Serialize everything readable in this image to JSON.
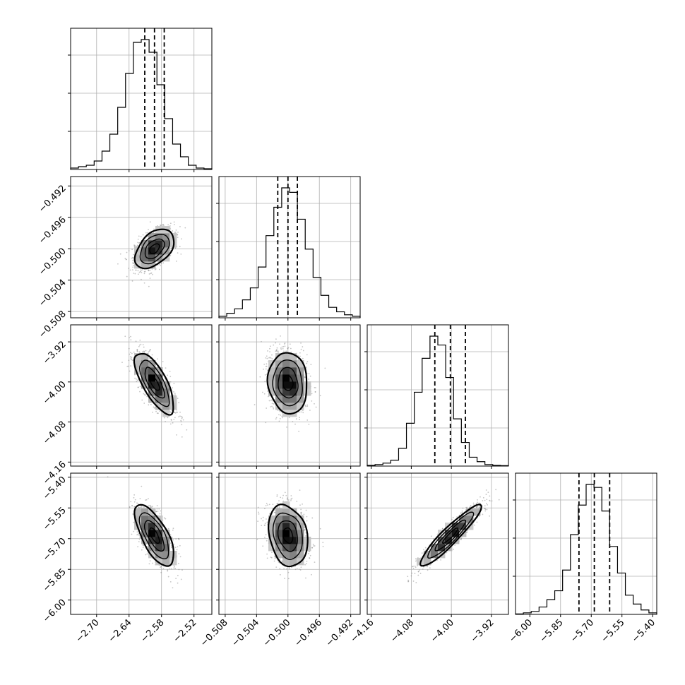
{
  "chart_data": {
    "type": "corner",
    "title": "",
    "parameters": [
      {
        "index": 0,
        "range": [
          -2.748,
          -2.487
        ],
        "ticks": [
          -2.7,
          -2.64,
          -2.58,
          -2.52
        ],
        "tick_labels": [
          "−2.70",
          "−2.64",
          "−2.58",
          "−2.52"
        ],
        "mean": -2.593,
        "quantiles": [
          -2.611,
          -2.593,
          -2.575
        ]
      },
      {
        "index": 1,
        "range": [
          -0.5088,
          -0.4908
        ],
        "ticks": [
          -0.508,
          -0.504,
          -0.5,
          -0.496,
          -0.492
        ],
        "tick_labels": [
          "−0.508",
          "−0.504",
          "−0.500",
          "−0.496",
          "−0.492"
        ],
        "mean": -0.5,
        "quantiles": [
          -0.5013,
          -0.5,
          -0.4988
        ]
      },
      {
        "index": 2,
        "range": [
          -4.168,
          -3.886
        ],
        "ticks": [
          -4.16,
          -4.08,
          -4.0,
          -3.92
        ],
        "tick_labels": [
          "−4.16",
          "−4.08",
          "−4.00",
          "−3.92"
        ],
        "mean": -4.002,
        "quantiles": [
          -4.033,
          -4.002,
          -3.972
        ]
      },
      {
        "index": 3,
        "range": [
          -6.07,
          -5.38
        ],
        "ticks": [
          -6.0,
          -5.85,
          -5.7,
          -5.55,
          -5.4
        ],
        "tick_labels": [
          "−6.00",
          "−5.85",
          "−5.70",
          "−5.55",
          "−5.40"
        ],
        "mean": -5.685,
        "quantiles": [
          -5.76,
          -5.685,
          -5.61
        ]
      }
    ],
    "histograms": [
      {
        "param": 0,
        "counts": [
          1,
          2,
          3,
          6,
          13,
          25,
          44,
          68,
          90,
          92,
          83,
          60,
          36,
          18,
          9,
          3,
          1,
          0.5
        ]
      },
      {
        "param": 1,
        "counts": [
          1,
          3,
          6,
          12,
          20,
          34,
          55,
          74,
          87,
          84,
          66,
          46,
          27,
          15,
          7,
          4,
          2,
          1
        ]
      },
      {
        "param": 2,
        "counts": [
          0.5,
          1,
          2,
          4,
          12,
          29,
          50,
          73,
          88,
          82,
          60,
          32,
          16,
          6,
          3,
          1,
          0.5,
          0.3
        ]
      },
      {
        "param": 3,
        "counts": [
          0.3,
          1,
          2,
          5,
          10,
          16,
          30,
          54,
          74,
          88,
          86,
          70,
          46,
          28,
          13,
          7,
          3,
          1
        ]
      }
    ],
    "pairs": [
      {
        "x": 0,
        "y": 1,
        "corr": 0.45
      },
      {
        "x": 0,
        "y": 2,
        "corr": -0.72
      },
      {
        "x": 1,
        "y": 2,
        "corr": -0.08
      },
      {
        "x": 0,
        "y": 3,
        "corr": -0.68
      },
      {
        "x": 1,
        "y": 3,
        "corr": -0.22
      },
      {
        "x": 2,
        "y": 3,
        "corr": 0.93
      }
    ],
    "contour_levels_sigma": [
      0.5,
      1.0,
      1.5,
      2.0
    ],
    "grid": true,
    "colors": {
      "line": "#000000",
      "grid": "#b0b0b0",
      "points": "#7f7f7f",
      "background": "#ffffff"
    }
  }
}
